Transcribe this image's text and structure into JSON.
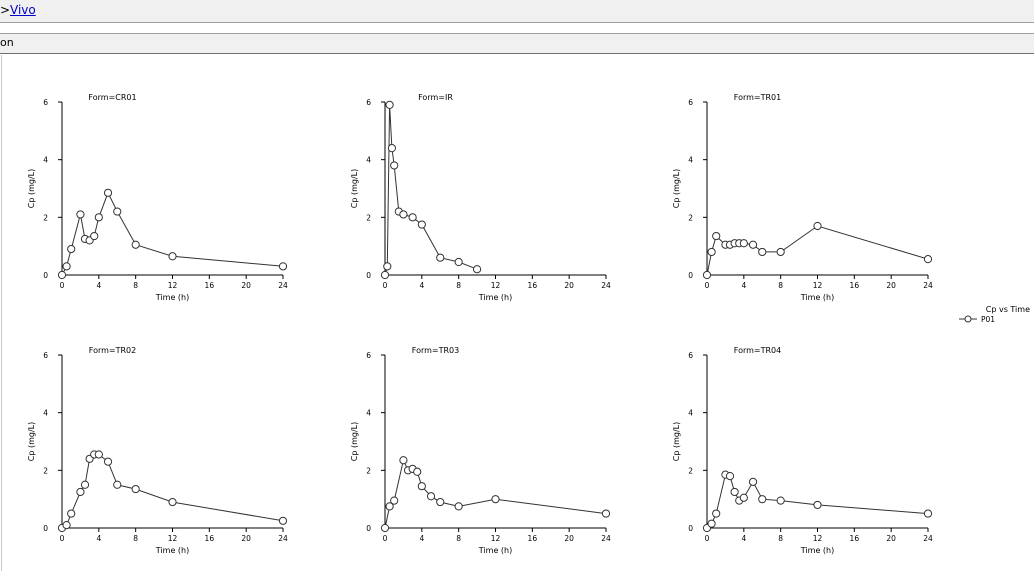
{
  "breadcrumb": {
    "separator": ">",
    "link": "Vivo"
  },
  "tab": {
    "label": "on"
  },
  "chart_data": {
    "type": "line",
    "xlabel": "Time (h)",
    "ylabel": "Cp (mg/L)",
    "xlim": [
      0,
      24
    ],
    "ylim": [
      0,
      6
    ],
    "xticks": [
      0,
      4,
      8,
      12,
      16,
      20,
      24
    ],
    "yticks": [
      0,
      2,
      4,
      6
    ],
    "grid": false,
    "legend": {
      "title": "Cp vs Time",
      "entries": [
        "P01"
      ],
      "placement": "right"
    },
    "panels": [
      {
        "title": "Form=CR01",
        "x": [
          0,
          0.5,
          1,
          2,
          2.5,
          3,
          3.5,
          4,
          5,
          6,
          8,
          12,
          24
        ],
        "y": [
          0,
          0.3,
          0.9,
          2.1,
          1.25,
          1.2,
          1.35,
          2.0,
          2.85,
          2.2,
          1.05,
          0.65,
          0.3
        ]
      },
      {
        "title": "Form=IR",
        "x": [
          0,
          0.25,
          0.5,
          0.75,
          1,
          1.5,
          2,
          3,
          4,
          6,
          8,
          10
        ],
        "y": [
          0,
          0.3,
          5.9,
          4.4,
          3.8,
          2.2,
          2.1,
          2.0,
          1.75,
          0.6,
          0.45,
          0.2
        ]
      },
      {
        "title": "Form=TR01",
        "x": [
          0,
          0.5,
          1,
          2,
          2.5,
          3,
          3.5,
          4,
          5,
          6,
          8,
          12,
          24
        ],
        "y": [
          0,
          0.8,
          1.35,
          1.05,
          1.05,
          1.1,
          1.1,
          1.1,
          1.05,
          0.8,
          0.8,
          1.7,
          0.55
        ]
      },
      {
        "title": "Form=TR02",
        "x": [
          0,
          0.5,
          1,
          2,
          2.5,
          3,
          3.5,
          4,
          5,
          6,
          8,
          12,
          24
        ],
        "y": [
          0,
          0.1,
          0.5,
          1.25,
          1.5,
          2.4,
          2.55,
          2.55,
          2.3,
          1.5,
          1.35,
          0.9,
          0.25
        ]
      },
      {
        "title": "Form=TR03",
        "x": [
          0,
          0.5,
          1,
          2,
          2.5,
          3,
          3.5,
          4,
          5,
          6,
          8,
          12,
          24
        ],
        "y": [
          0,
          0.75,
          0.95,
          2.35,
          2.0,
          2.05,
          1.95,
          1.45,
          1.1,
          0.9,
          0.75,
          1.0,
          0.5
        ]
      },
      {
        "title": "Form=TR04",
        "x": [
          0,
          0.5,
          1,
          2,
          2.5,
          3,
          3.5,
          4,
          5,
          6,
          8,
          12,
          24
        ],
        "y": [
          0,
          0.15,
          0.5,
          1.85,
          1.8,
          1.25,
          0.95,
          1.05,
          1.6,
          1.0,
          0.95,
          0.8,
          0.5
        ]
      }
    ]
  }
}
